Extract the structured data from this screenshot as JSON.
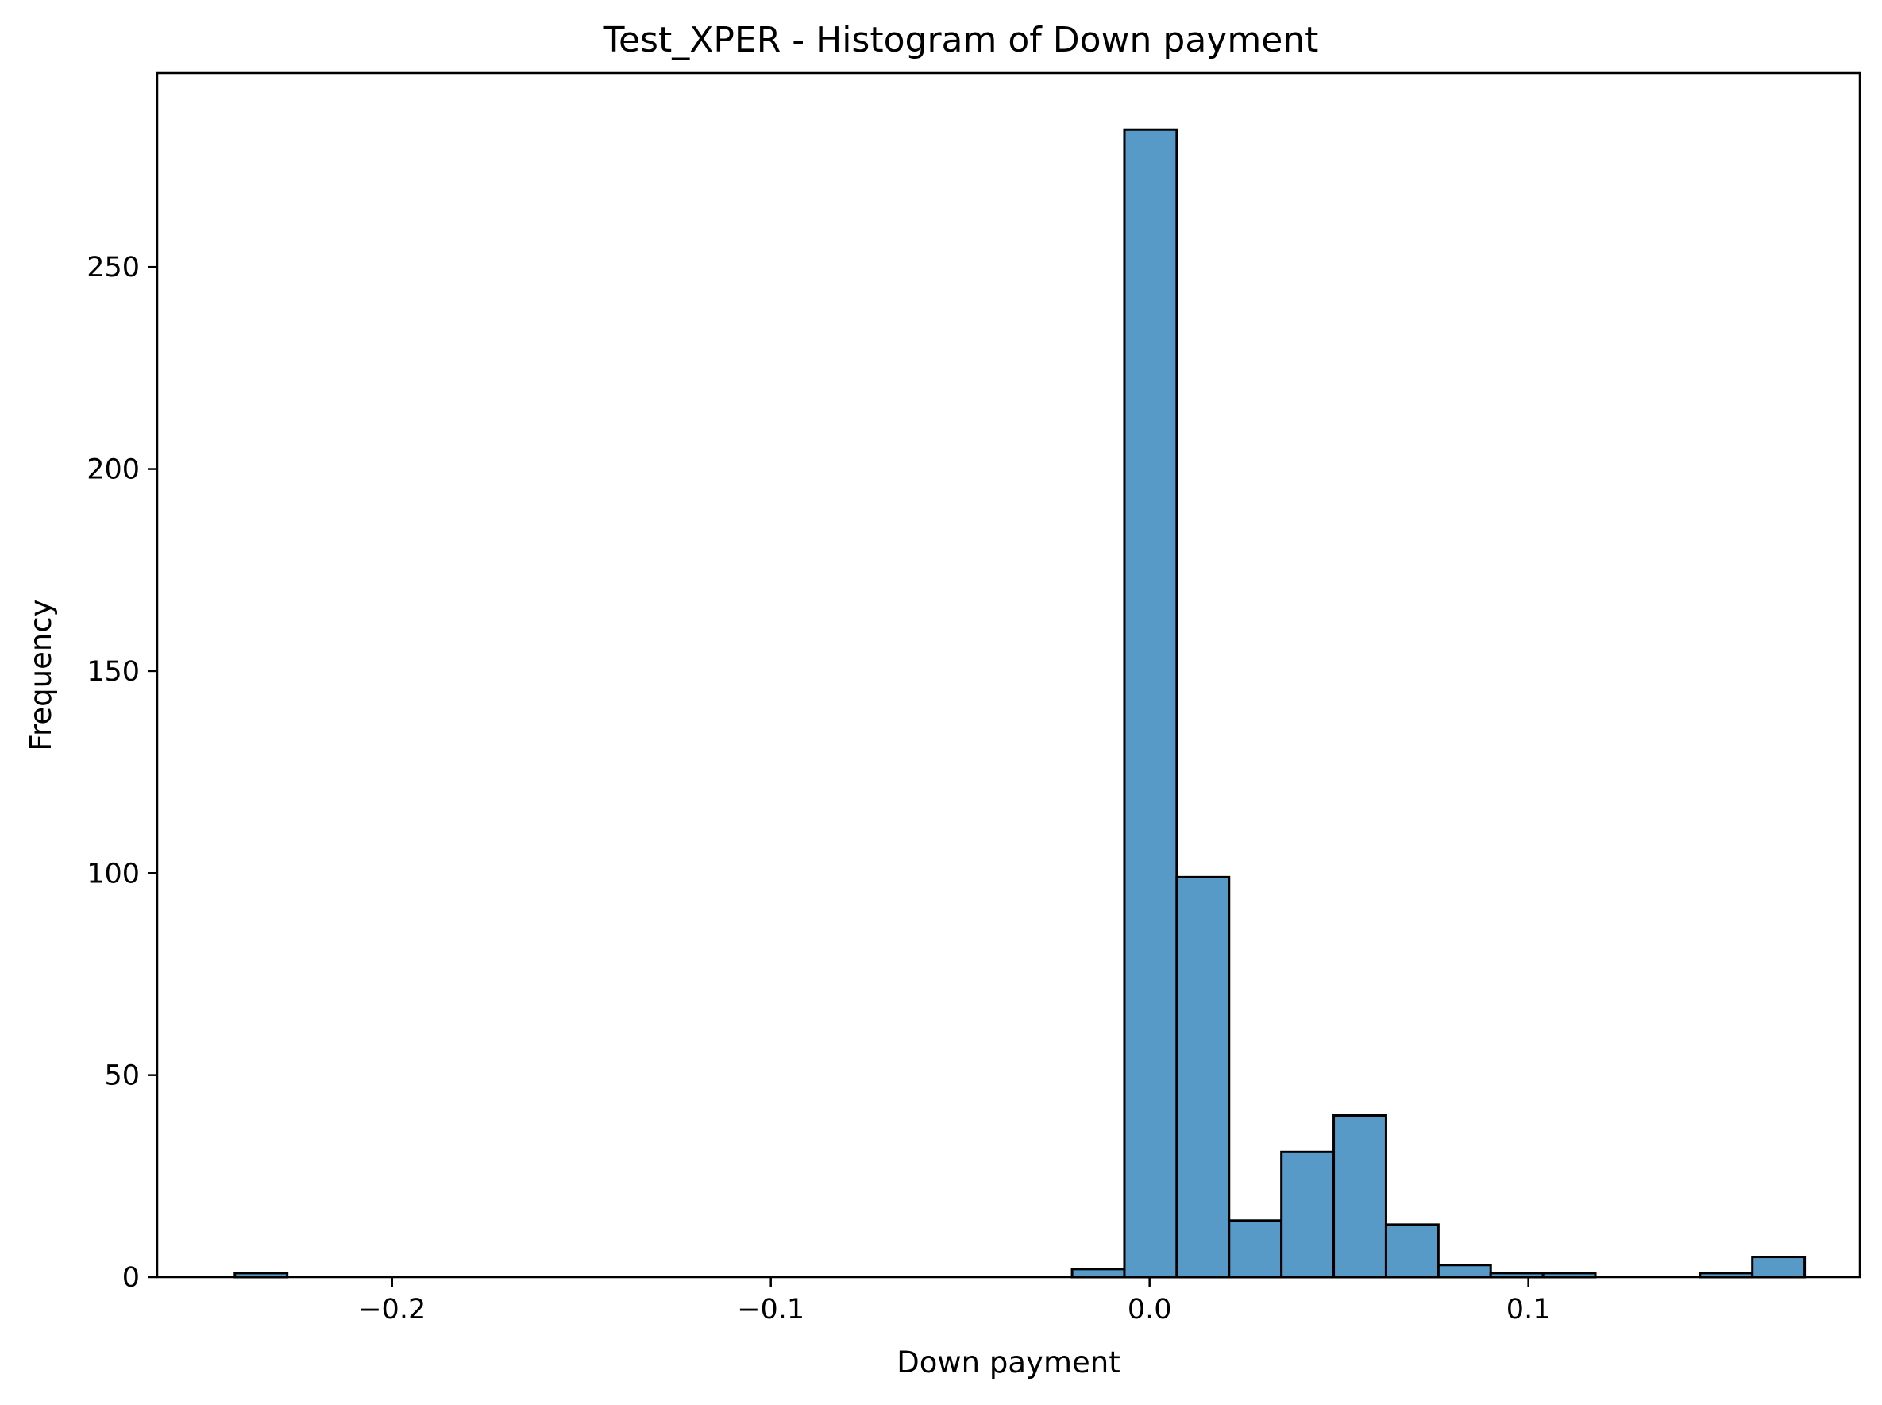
{
  "chart_data": {
    "type": "bar",
    "title": "Test_XPER - Histogram of Down payment",
    "xlabel": "Down payment",
    "ylabel": "Frequency",
    "xlim": [
      -0.262,
      0.1875
    ],
    "ylim": [
      0,
      298
    ],
    "xticks": [
      {
        "value": -0.2,
        "label": "−0.2"
      },
      {
        "value": -0.1,
        "label": "−0.1"
      },
      {
        "value": 0.0,
        "label": "0.0"
      },
      {
        "value": 0.1,
        "label": "0.1"
      }
    ],
    "yticks": [
      {
        "value": 0,
        "label": "0"
      },
      {
        "value": 50,
        "label": "50"
      },
      {
        "value": 100,
        "label": "100"
      },
      {
        "value": 150,
        "label": "150"
      },
      {
        "value": 200,
        "label": "200"
      },
      {
        "value": 250,
        "label": "250"
      }
    ],
    "bin_start": -0.2415,
    "bin_width": 0.013815,
    "counts": [
      1,
      0,
      0,
      0,
      0,
      0,
      0,
      0,
      0,
      0,
      0,
      0,
      0,
      0,
      0,
      0,
      2,
      284,
      99,
      14,
      31,
      40,
      13,
      3,
      1,
      1,
      0,
      0,
      1,
      5
    ],
    "bar_color": "#5799c7",
    "grid": false
  }
}
